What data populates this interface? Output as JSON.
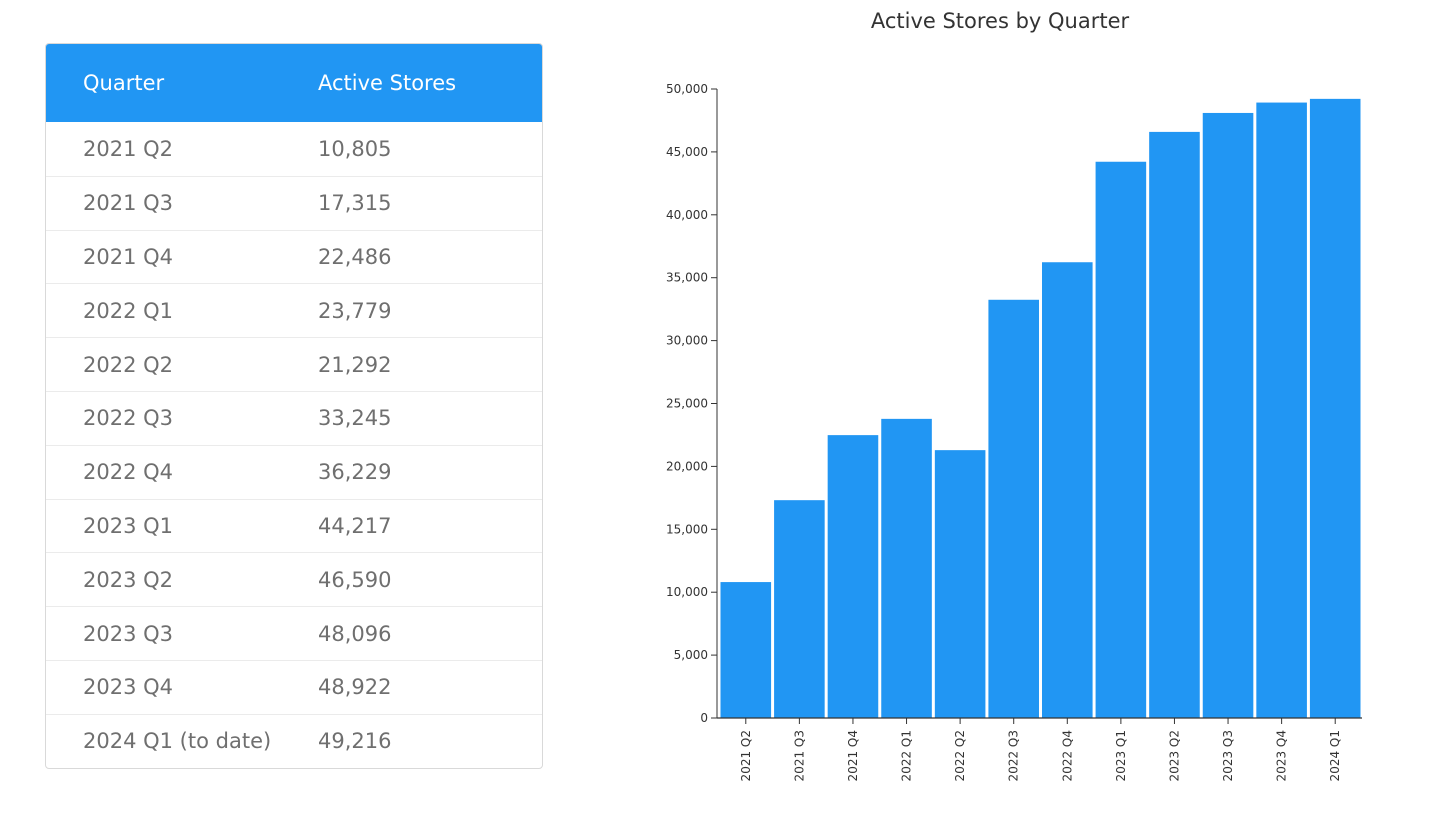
{
  "table": {
    "header": {
      "quarter": "Quarter",
      "stores": "Active Stores"
    },
    "rows": [
      {
        "quarter": "2021 Q2",
        "stores": "10,805"
      },
      {
        "quarter": "2021 Q3",
        "stores": "17,315"
      },
      {
        "quarter": "2021 Q4",
        "stores": "22,486"
      },
      {
        "quarter": "2022 Q1",
        "stores": "23,779"
      },
      {
        "quarter": "2022 Q2",
        "stores": "21,292"
      },
      {
        "quarter": "2022 Q3",
        "stores": "33,245"
      },
      {
        "quarter": "2022 Q4",
        "stores": "36,229"
      },
      {
        "quarter": "2023 Q1",
        "stores": "44,217"
      },
      {
        "quarter": "2023 Q2",
        "stores": "46,590"
      },
      {
        "quarter": "2023 Q3",
        "stores": "48,096"
      },
      {
        "quarter": "2023 Q4",
        "stores": "48,922"
      },
      {
        "quarter": "2024 Q1 (to date)",
        "stores": "49,216"
      }
    ]
  },
  "colors": {
    "accent": "#2196f3",
    "axis": "#333333"
  },
  "chart_data": {
    "type": "bar",
    "title": "Active Stores by Quarter",
    "xlabel": "",
    "ylabel": "",
    "categories": [
      "2021 Q2",
      "2021 Q3",
      "2021 Q4",
      "2022 Q1",
      "2022 Q2",
      "2022 Q3",
      "2022 Q4",
      "2023 Q1",
      "2023 Q2",
      "2023 Q3",
      "2023 Q4",
      "2024 Q1"
    ],
    "values": [
      10805,
      17315,
      22486,
      23779,
      21292,
      33245,
      36229,
      44217,
      46590,
      48096,
      48922,
      49216
    ],
    "ylim": [
      0,
      50000
    ],
    "yticks": [
      0,
      5000,
      10000,
      15000,
      20000,
      25000,
      30000,
      35000,
      40000,
      45000,
      50000
    ],
    "ytick_labels": [
      "0",
      "5,000",
      "10,000",
      "15,000",
      "20,000",
      "25,000",
      "30,000",
      "35,000",
      "40,000",
      "45,000",
      "50,000"
    ],
    "grid": false,
    "legend": "none"
  }
}
